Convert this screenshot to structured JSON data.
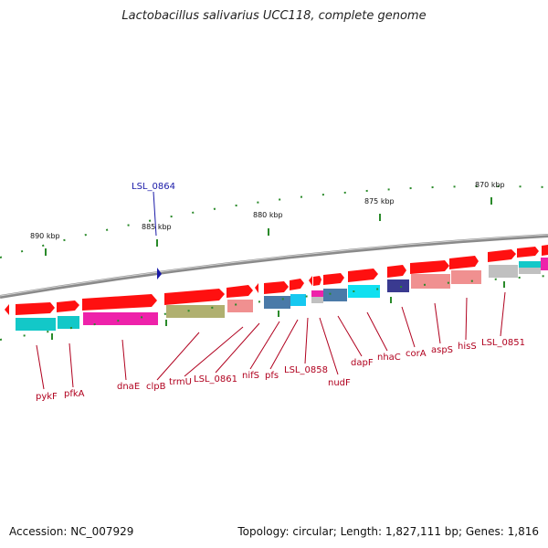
{
  "title": "Lactobacillus salivarius UCC118, complete genome",
  "footer": {
    "accession": "Accession: NC_007929",
    "stats": "Topology: circular; Length: 1,827,111 bp; Genes: 1,816"
  },
  "colors": {
    "gene_label": "#b0001e",
    "highlight_label": "#1a1aa8",
    "ticks": "#2a8a2a",
    "backbone": "#8a8a8a"
  },
  "scale_labels": [
    "890 kbp",
    "885 kbp",
    "880 kbp",
    "875 kbp",
    "870 kbp"
  ],
  "highlight_gene": "LSL_0864",
  "gene_labels": [
    "pykF",
    "pfkA",
    "dnaE",
    "clpB",
    "trmU",
    "LSL_0861",
    "nifS",
    "pfs",
    "LSL_0858",
    "nudF",
    "dapF",
    "nhaC",
    "corA",
    "aspS",
    "hisS",
    "LSL_0851"
  ]
}
